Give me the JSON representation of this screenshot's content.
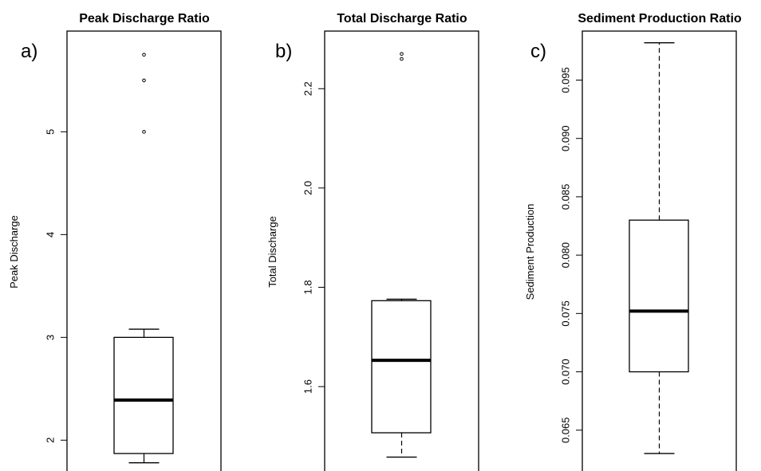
{
  "chart_data": [
    {
      "type": "boxplot",
      "panel_label": "a)",
      "title": "Peak Discharge Ratio",
      "xlabel": "",
      "ylabel": "Peak Discharge",
      "ylim": [
        1.7,
        5.98
      ],
      "ticks": [
        2,
        3,
        4,
        5
      ],
      "tick_labels": [
        "2",
        "3",
        "4",
        "5"
      ],
      "box": {
        "whisker_low": 1.78,
        "q1": 1.87,
        "median": 2.39,
        "q3": 3.0,
        "whisker_high": 3.08
      },
      "outliers": [
        5.0,
        5.5,
        5.75
      ]
    },
    {
      "type": "boxplot",
      "panel_label": "b)",
      "title": "Total Discharge Ratio",
      "xlabel": "",
      "ylabel": "Total Discharge",
      "ylim": [
        1.43,
        2.316
      ],
      "ticks": [
        1.6,
        1.8,
        2.0,
        2.2
      ],
      "tick_labels": [
        "1.6",
        "1.8",
        "2.0",
        "2.2"
      ],
      "box": {
        "whisker_low": 1.458,
        "q1": 1.507,
        "median": 1.653,
        "q3": 1.773,
        "whisker_high": 1.776
      },
      "outliers": [
        2.26,
        2.27
      ]
    },
    {
      "type": "boxplot",
      "panel_label": "c)",
      "title": "Sediment Production Ratio",
      "xlabel": "",
      "ylabel": "Sediment Production",
      "ylim": [
        0.0615,
        0.0992
      ],
      "ticks": [
        0.065,
        0.07,
        0.075,
        0.08,
        0.085,
        0.09,
        0.095
      ],
      "tick_labels": [
        "0.065",
        "0.070",
        "0.075",
        "0.080",
        "0.085",
        "0.090",
        "0.095"
      ],
      "box": {
        "whisker_low": 0.063,
        "q1": 0.07,
        "median": 0.0752,
        "q3": 0.083,
        "whisker_high": 0.0982
      },
      "outliers": []
    }
  ]
}
